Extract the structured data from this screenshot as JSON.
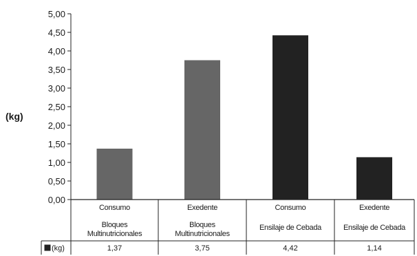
{
  "chart_data": {
    "type": "bar",
    "ylabel": "(kg)",
    "ylim": [
      0,
      5
    ],
    "yticks": [
      "0,00",
      "0,50",
      "1,00",
      "1,50",
      "2,00",
      "2,50",
      "3,00",
      "3,50",
      "4,00",
      "4,50",
      "5,00"
    ],
    "categories": [
      [
        "Consumo",
        "Bloques",
        "Multinutricionales"
      ],
      [
        "Exedente",
        "Bloques",
        "Multinutricionales"
      ],
      [
        "Consumo",
        "Ensilaje de Cebada"
      ],
      [
        "Exedente",
        "Ensilaje de Cebada"
      ]
    ],
    "values": [
      1.37,
      3.75,
      4.42,
      1.14
    ],
    "value_labels": [
      "1,37",
      "3,75",
      "4,42",
      "1,14"
    ],
    "colors": [
      "#666666",
      "#666666",
      "#222222",
      "#222222"
    ],
    "series": [
      {
        "name": "(kg)",
        "values": [
          1.37,
          3.75,
          4.42,
          1.14
        ]
      }
    ],
    "legend_key_color": "#222222",
    "grid": false,
    "data_table": true
  }
}
